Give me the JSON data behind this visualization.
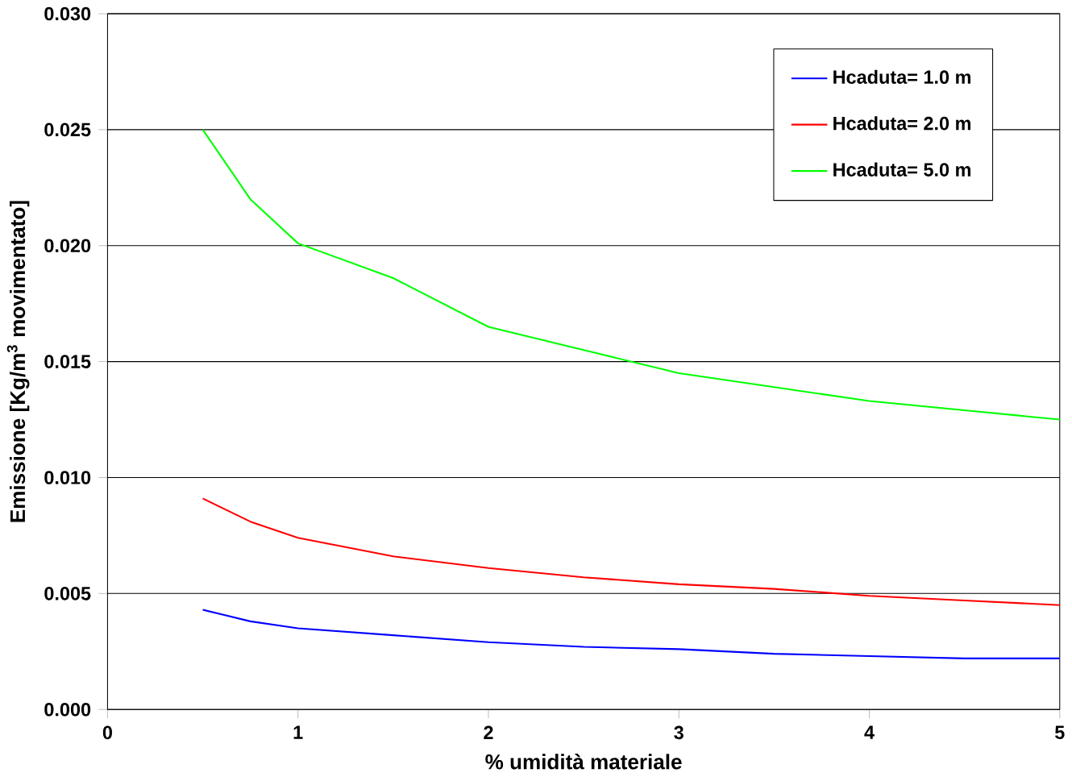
{
  "chart_data": {
    "type": "line",
    "xlabel": "% umidità materiale",
    "ylabel": "Emissione [Kg/m$^{3}$ movimentato]",
    "xlim": [
      0,
      5
    ],
    "ylim": [
      0,
      0.03
    ],
    "xticks": [
      0,
      1,
      2,
      3,
      4,
      5
    ],
    "yticks": [
      {
        "value": 0,
        "label": "0.000"
      },
      {
        "value": 0.005,
        "label": "0.005"
      },
      {
        "value": 0.01,
        "label": "0.010"
      },
      {
        "value": 0.015,
        "label": "0.015"
      },
      {
        "value": 0.02,
        "label": "0.020"
      },
      {
        "value": 0.025,
        "label": "0.025"
      },
      {
        "value": 0.03,
        "label": "0.030"
      }
    ],
    "grid": "y",
    "legend": "top right",
    "marker": "none",
    "line_style": "solid",
    "x": [
      0.5,
      0.75,
      1,
      1.5,
      2,
      2.5,
      3,
      3.5,
      4,
      4.5,
      5
    ],
    "series": [
      {
        "name": "Hcaduta= 1.0 m",
        "color": "#0000ff",
        "values": [
          0.0043,
          0.0038,
          0.0035,
          0.0032,
          0.0029,
          0.0027,
          0.0026,
          0.0024,
          0.0023,
          0.0022,
          0.0022
        ]
      },
      {
        "name": "Hcaduta= 2.0 m",
        "color": "#ff0000",
        "values": [
          0.0091,
          0.0081,
          0.0074,
          0.0066,
          0.0061,
          0.0057,
          0.0054,
          0.0052,
          0.0049,
          0.0047,
          0.0045
        ]
      },
      {
        "name": "Hcaduta= 5.0 m",
        "color": "#00ff00",
        "values": [
          0.025,
          0.022,
          0.0201,
          0.0186,
          0.0165,
          0.0155,
          0.0145,
          0.0139,
          0.0133,
          0.0129,
          0.0125
        ]
      }
    ]
  }
}
